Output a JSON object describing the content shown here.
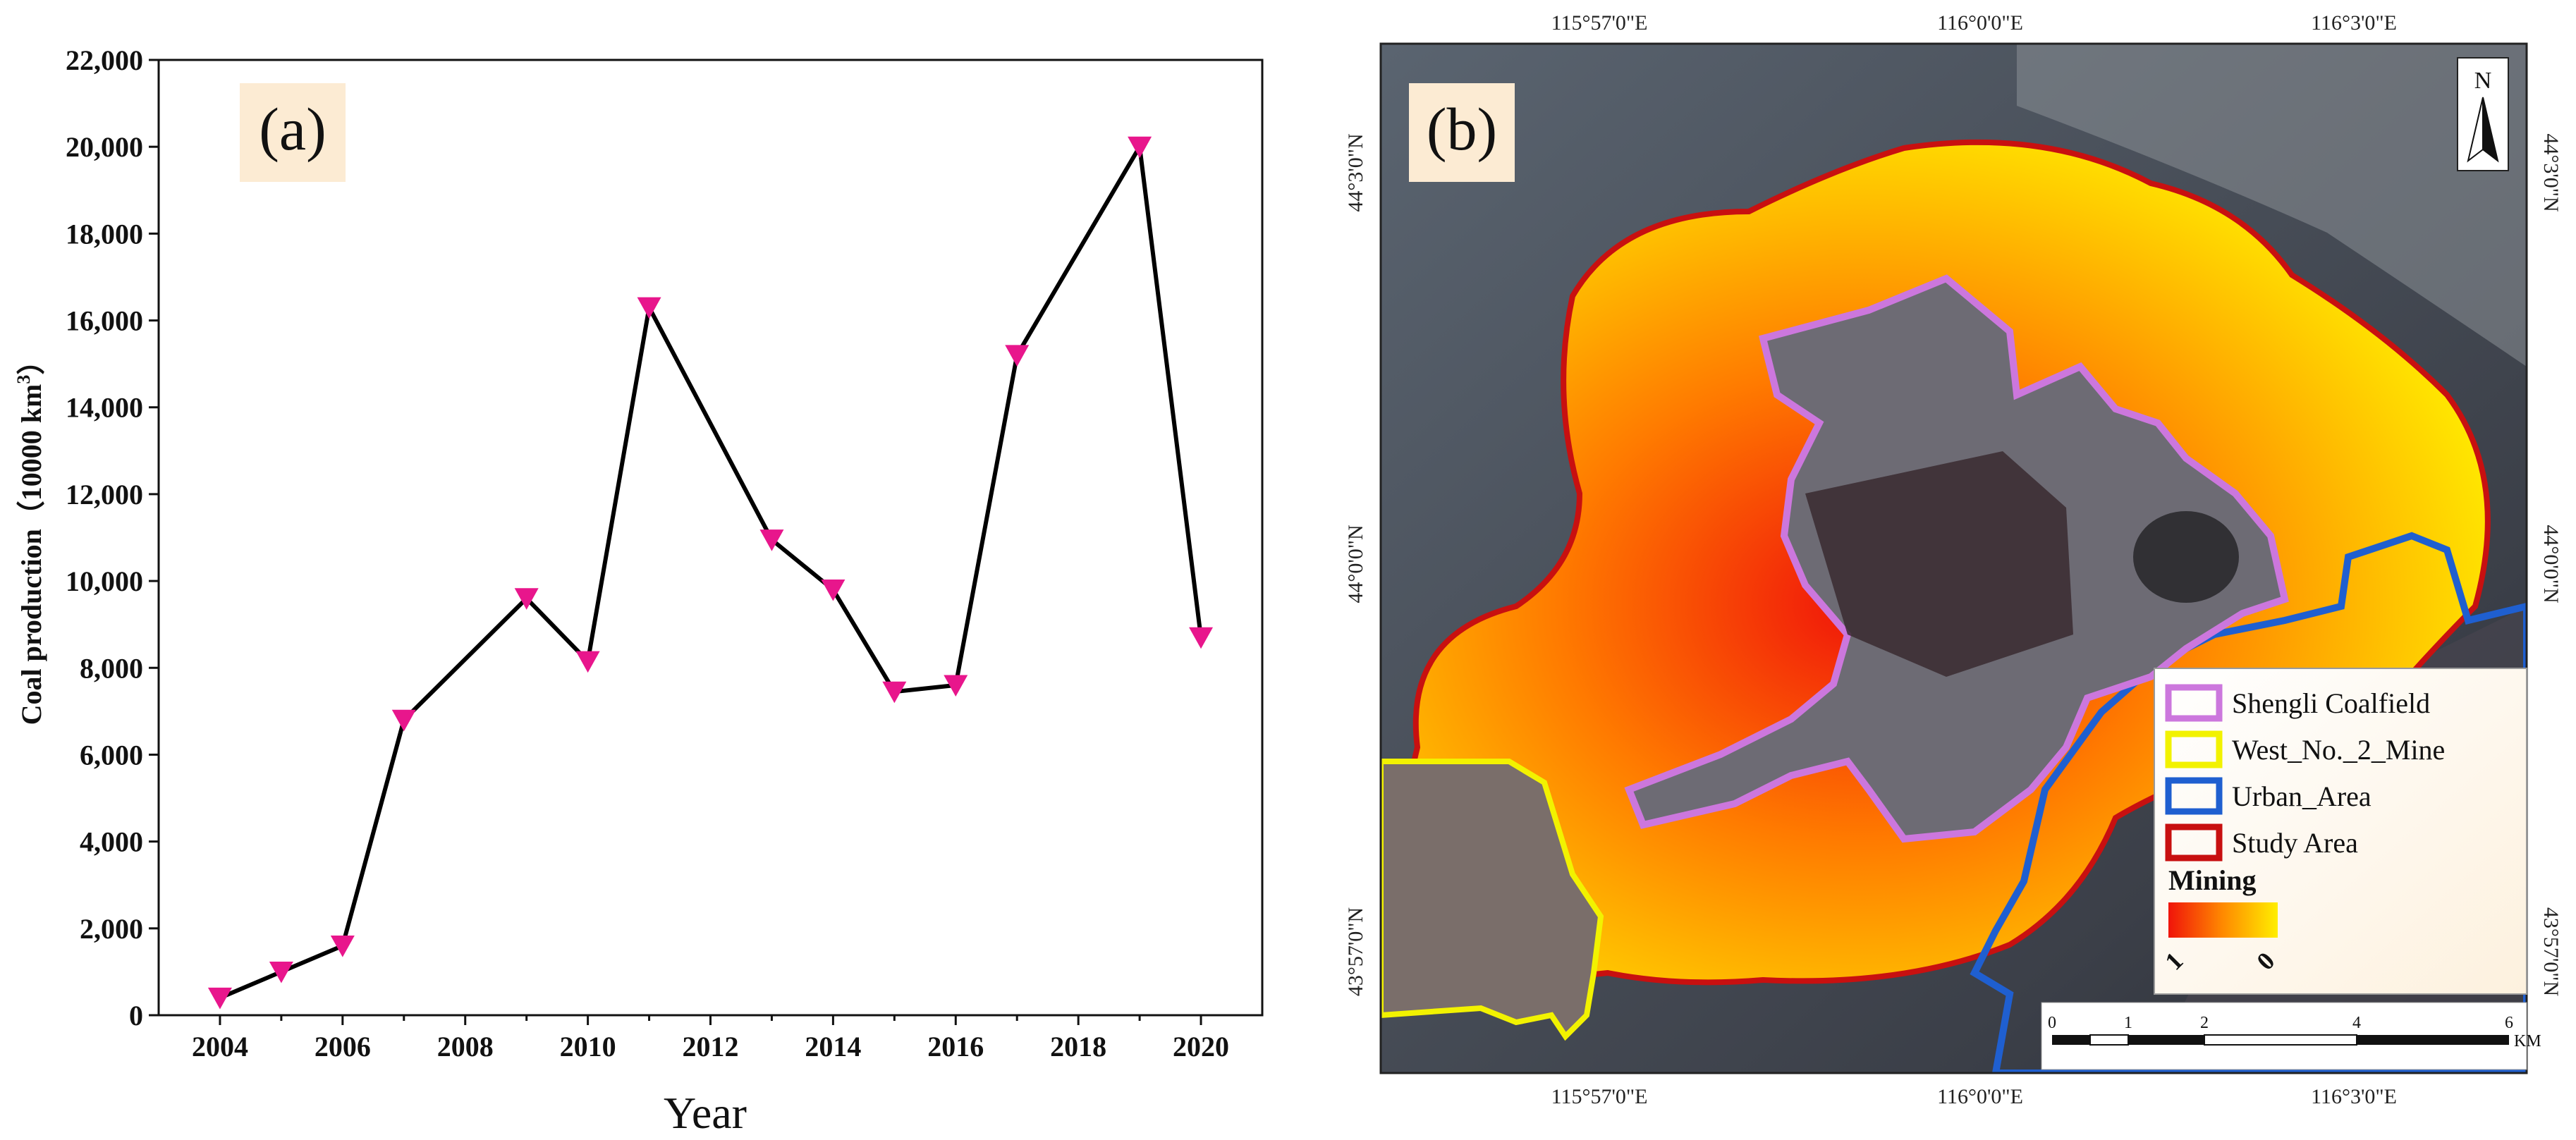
{
  "chart_data": [
    {
      "panel_label": "(a)",
      "type": "line",
      "x": [
        2004,
        2005,
        2006,
        2007,
        2009,
        2010,
        2011,
        2013,
        2014,
        2015,
        2016,
        2017,
        2019,
        2020
      ],
      "values": [
        400,
        1000,
        1600,
        6800,
        9600,
        8150,
        16300,
        10950,
        9800,
        7450,
        7600,
        15200,
        20000,
        8700
      ],
      "xlabel": "Year",
      "ylabel": "Coal production（10000 km³）",
      "xlim": [
        2003,
        2021
      ],
      "ylim": [
        0,
        22000
      ],
      "x_ticks": [
        "2004",
        "2006",
        "2008",
        "2010",
        "2012",
        "2014",
        "2016",
        "2018",
        "2020"
      ],
      "y_ticks": [
        "0",
        "2,000",
        "4,000",
        "6,000",
        "8,000",
        "10,000",
        "12,000",
        "14,000",
        "16,000",
        "18,000",
        "20,000",
        "22,000"
      ],
      "grid": false,
      "line_color": "#000000",
      "marker_color": "#e8168c",
      "marker": "down-triangle",
      "label_box_color": "#fcebd3"
    }
  ],
  "map": {
    "panel_label": "(b)",
    "top_ticks": [
      "115°57'0\"E",
      "116°0'0\"E",
      "116°3'0\"E"
    ],
    "bottom_ticks": [
      "115°57'0\"E",
      "116°0'0\"E",
      "116°3'0\"E"
    ],
    "left_ticks": [
      "44°3'0\"N",
      "44°0'0\"N",
      "43°57'0\"N"
    ],
    "right_ticks": [
      "44°3'0\"N",
      "44°0'0\"N",
      "43°57'0\"N"
    ],
    "north_label": "N",
    "legend": {
      "items": [
        {
          "label": "Shengli Coalfield",
          "color": "#cc77dd"
        },
        {
          "label": "West_No._2_Mine",
          "color": "#f2f200"
        },
        {
          "label": "Urban_Area",
          "color": "#1f5fd0"
        },
        {
          "label": "Study Area",
          "color": "#c81010"
        }
      ],
      "ramp_title": "Mining",
      "ramp_high": "1",
      "ramp_low": "0",
      "ramp_colors": [
        "#f0140a",
        "#ff8a00",
        "#ffee00"
      ]
    },
    "scale_bar": {
      "ticks": [
        "0",
        "1",
        "2",
        "4",
        "6"
      ],
      "unit": "KM"
    }
  }
}
